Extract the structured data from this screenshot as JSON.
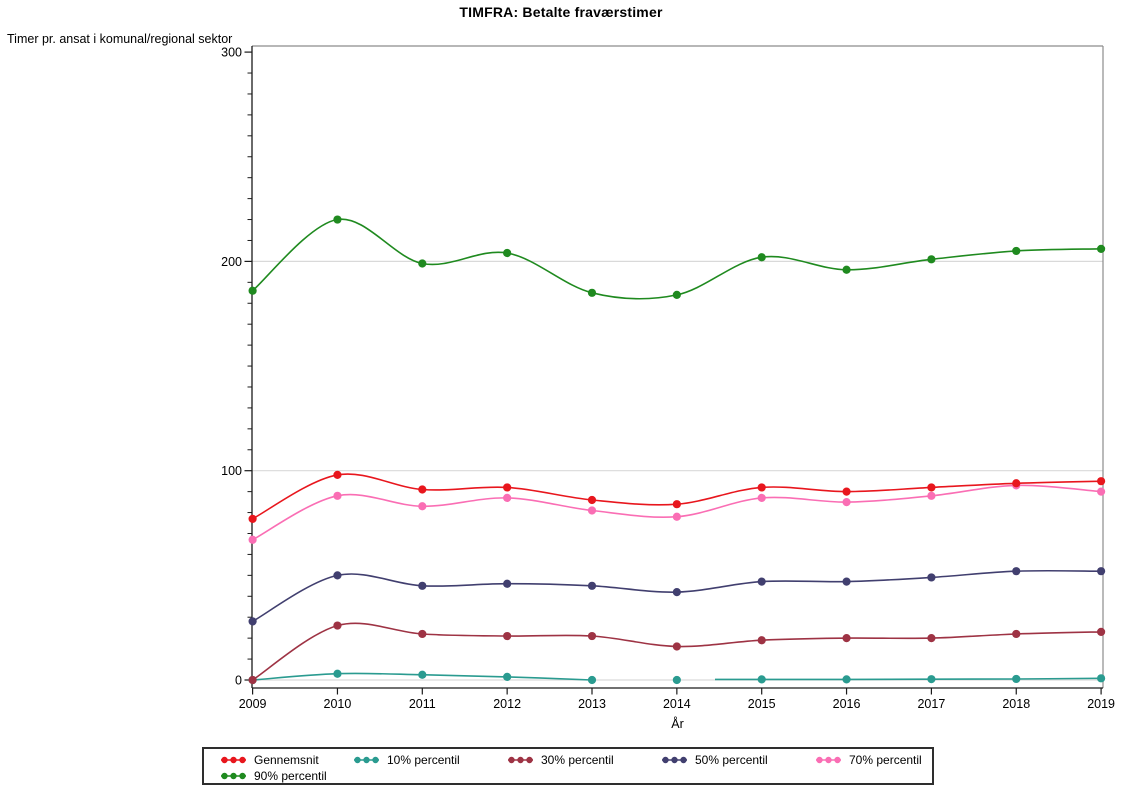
{
  "chart_data": {
    "type": "line",
    "title": "TIMFRA: Betalte fraværstimer",
    "ylabel": "Timer pr. ansat i komunal/regional sektor",
    "xlabel": "År",
    "x": [
      2009,
      2010,
      2011,
      2012,
      2013,
      2014,
      2015,
      2016,
      2017,
      2018,
      2019
    ],
    "y_ticks": [
      0,
      100,
      200,
      300
    ],
    "y_tick_labels": [
      "0",
      "100",
      "200",
      "300"
    ],
    "ylim": [
      0,
      300
    ],
    "xlim": [
      2009,
      2019
    ],
    "y_minor_tick_interval": 10,
    "grid": true,
    "legend_position": "bottom",
    "series": [
      {
        "name": "Gennemsnit",
        "color": "#e8161d",
        "values": [
          77,
          98,
          91,
          92,
          86,
          84,
          92,
          90,
          92,
          94,
          95
        ]
      },
      {
        "name": "10% percentil",
        "color": "#2a9b90",
        "values": [
          0,
          3,
          2.5,
          1.5,
          0,
          0,
          0.3,
          0.3,
          0.4,
          0.5,
          0.8
        ],
        "line_segments": [
          [
            [
              2009,
              0
            ],
            [
              2010,
              3
            ],
            [
              2011,
              2.5
            ],
            [
              2012,
              1.5
            ],
            [
              2013,
              0
            ]
          ],
          [
            [
              2014.45,
              0.3
            ],
            [
              2015,
              0.3
            ],
            [
              2016,
              0.3
            ],
            [
              2017,
              0.4
            ],
            [
              2018,
              0.5
            ],
            [
              2019,
              0.8
            ]
          ]
        ]
      },
      {
        "name": "30% percentil",
        "color": "#9e3344",
        "values": [
          0,
          26,
          22,
          21,
          21,
          16,
          19,
          20,
          20,
          22,
          23
        ]
      },
      {
        "name": "50% percentil",
        "color": "#413f6f",
        "values": [
          28,
          50,
          45,
          46,
          45,
          42,
          47,
          47,
          49,
          52,
          52
        ]
      },
      {
        "name": "70% percentil",
        "color": "#fa6eb4",
        "values": [
          67,
          88,
          83,
          87,
          81,
          78,
          87,
          85,
          88,
          93,
          90
        ]
      },
      {
        "name": "90% percentil",
        "color": "#1f8a1f",
        "values": [
          186,
          220,
          199,
          204,
          185,
          184,
          202,
          196,
          201,
          205,
          206
        ]
      }
    ],
    "colors": {
      "gridline": "#d9d9d9",
      "axis": "#1a1a1a",
      "frame": "#8c8c8c",
      "legend_border": "#2e2e2e"
    }
  }
}
